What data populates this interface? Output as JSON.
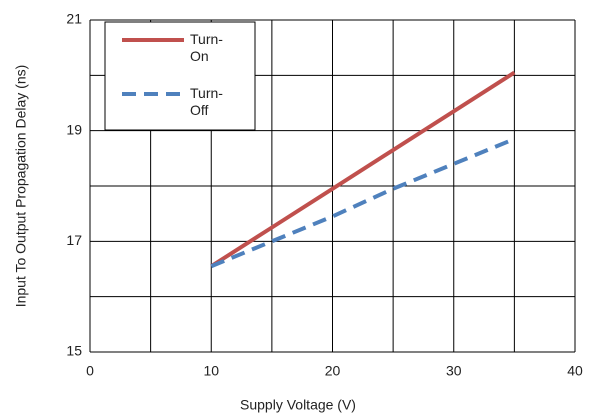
{
  "chart_data": {
    "type": "line",
    "x_label": "Supply Voltage (V)",
    "y_label": "Input To Output Propagation Delay (ns)",
    "xlim": [
      0,
      40
    ],
    "xticks": [
      0,
      10,
      20,
      30,
      40
    ],
    "xminorticks": [
      5,
      15,
      25,
      35
    ],
    "ylim": [
      15,
      21
    ],
    "yticks": [
      15,
      17,
      19,
      21
    ],
    "yminorticks": [
      16,
      18,
      20
    ],
    "grid": true,
    "legend": "upper-left",
    "series": [
      {
        "name": "Turn-On",
        "color": "#c0504d",
        "dash": false,
        "x": [
          10,
          15,
          20,
          25,
          30,
          35
        ],
        "values": [
          16.55,
          17.25,
          17.95,
          18.65,
          19.35,
          20.05
        ]
      },
      {
        "name": "Turn-Off",
        "color": "#4f81bd",
        "dash": true,
        "x": [
          10,
          15,
          20,
          25,
          30,
          35
        ],
        "values": [
          16.55,
          17.0,
          17.45,
          17.95,
          18.4,
          18.85
        ]
      }
    ]
  }
}
